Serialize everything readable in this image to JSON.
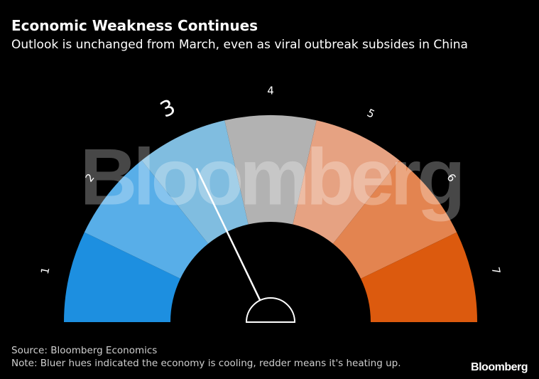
{
  "chart_data": {
    "type": "gauge",
    "title": "Economic Weakness Continues",
    "subtitle": "Outlook is unchanged from March, even as viral outbreak subsides in China",
    "categories": [
      "1",
      "2",
      "3",
      "4",
      "5",
      "6",
      "7"
    ],
    "colors": [
      "#1d8fe0",
      "#58aee8",
      "#80bde0",
      "#b2b2b2",
      "#e6a282",
      "#e38450",
      "#dc5a0e"
    ],
    "value": 3,
    "watermark": "Bloomberg",
    "source": "Source: Bloomberg Economics",
    "note": "Note: Bluer hues indicated the economy is cooling, redder means it's heating up.",
    "logo": "Bloomberg"
  }
}
